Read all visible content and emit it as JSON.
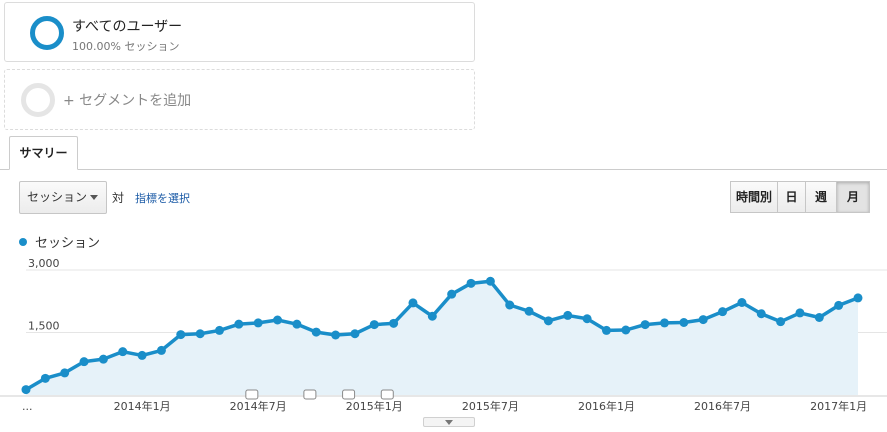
{
  "segments": [
    {
      "title": "すべてのユーザー",
      "sub": "100.00% セッション"
    },
    {
      "title": "+ セグメントを追加"
    }
  ],
  "tab": {
    "label": "サマリー"
  },
  "controls": {
    "metric": "セッション",
    "vs": "対",
    "choose_metric": "指標を選択",
    "granularity": [
      "時間別",
      "日",
      "週",
      "月"
    ],
    "active_granularity": "月"
  },
  "colors": {
    "accent": "#1a8ec9",
    "fill": "#e6f2f9",
    "grid": "#e5e5e5"
  },
  "chart_data": {
    "type": "area",
    "series": [
      {
        "name": "セッション",
        "values": [
          130,
          400,
          530,
          800,
          860,
          1040,
          950,
          1070,
          1450,
          1470,
          1550,
          1700,
          1730,
          1800,
          1700,
          1510,
          1440,
          1470,
          1690,
          1720,
          2210,
          1890,
          2420,
          2680,
          2730,
          2160,
          2010,
          1780,
          1910,
          1830,
          1550,
          1560,
          1690,
          1730,
          1740,
          1810,
          2000,
          2220,
          1950,
          1760,
          1970,
          1860,
          2150,
          2330
        ]
      }
    ],
    "ylim": [
      0,
      3000
    ],
    "yticks": [
      "1,500",
      "3,000"
    ],
    "ytick_values": [
      1500,
      3000
    ],
    "xticks": [
      {
        "label": "...",
        "index": 0
      },
      {
        "label": "2014年1月",
        "index": 6
      },
      {
        "label": "2014年7月",
        "index": 12
      },
      {
        "label": "2015年1月",
        "index": 18
      },
      {
        "label": "2015年7月",
        "index": 24
      },
      {
        "label": "2016年1月",
        "index": 30
      },
      {
        "label": "2016年7月",
        "index": 36
      },
      {
        "label": "2017年1月",
        "index": 42
      }
    ],
    "annotation_indices": [
      11,
      14,
      16,
      18
    ],
    "grid": true
  }
}
